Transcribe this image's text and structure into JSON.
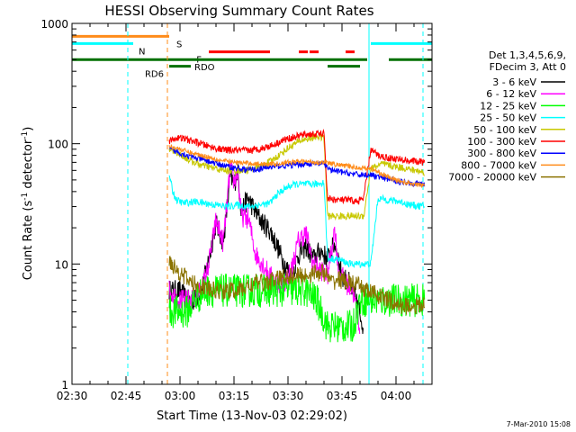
{
  "chart_data": {
    "type": "line",
    "title": "HESSI Observing Summary Count Rates",
    "xlabel": "Start Time (13-Nov-03 02:29:02)",
    "ylabel_main": "Count Rate (s",
    "ylabel_sup1": "-1",
    "ylabel_mid": " detector",
    "ylabel_sup2": "-1",
    "ylabel_end": ")",
    "date_stamp": "7-Mar-2010 15:08",
    "yscale": "log",
    "ylim": [
      1,
      1000
    ],
    "xlim_min": [
      150,
      250
    ],
    "x_ticks": [
      {
        "t": 150,
        "label": "02:30"
      },
      {
        "t": 165,
        "label": "02:45"
      },
      {
        "t": 180,
        "label": "03:00"
      },
      {
        "t": 195,
        "label": "03:15"
      },
      {
        "t": 210,
        "label": "03:30"
      },
      {
        "t": 225,
        "label": "03:45"
      },
      {
        "t": 240,
        "label": "04:00"
      }
    ],
    "y_ticks": [
      {
        "v": 1,
        "label": "1"
      },
      {
        "v": 10,
        "label": "10"
      },
      {
        "v": 100,
        "label": "100"
      },
      {
        "v": 1000,
        "label": "1000"
      }
    ],
    "legend": {
      "position": "right",
      "header": [
        "Det 1,3,4,5,6,9,",
        "FDecim 3, Att 0"
      ],
      "entries": [
        {
          "label": "3 - 6 keV",
          "color": "#000000"
        },
        {
          "label": "6 - 12 keV",
          "color": "#ff00ff"
        },
        {
          "label": "12 - 25 keV",
          "color": "#00ff00"
        },
        {
          "label": "25 - 50 keV",
          "color": "#00ffff"
        },
        {
          "label": "50 - 100 keV",
          "color": "#c8c800"
        },
        {
          "label": "100 - 300 keV",
          "color": "#ff0000"
        },
        {
          "label": "300 - 800 keV",
          "color": "#0000ff"
        },
        {
          "label": "800 - 7000 keV",
          "color": "#ff8c1a"
        },
        {
          "label": "7000 - 20000 keV",
          "color": "#8b7300"
        }
      ]
    },
    "flag_bars": [
      {
        "label": "S",
        "color": "#ff8c1a",
        "y": 780,
        "segments": [
          [
            150,
            177
          ]
        ],
        "label_t": 178,
        "label_side": "right"
      },
      {
        "label": "N",
        "color": "#00ffff",
        "y": 680,
        "segments": [
          [
            150,
            167
          ],
          [
            233,
            250
          ]
        ],
        "label_t": 167.5,
        "label_side": "right"
      },
      {
        "label": "F",
        "color": "#ff0000",
        "y": 580,
        "segments": [
          [
            188,
            205
          ],
          [
            213,
            215.5
          ],
          [
            216,
            218.5
          ],
          [
            226,
            228.5
          ]
        ],
        "label_t": 187,
        "label_side": "left"
      },
      {
        "label": "RDO",
        "color": "#007000",
        "y": 500,
        "segments": [
          [
            150,
            232
          ],
          [
            238,
            250
          ]
        ],
        "label_t": 183,
        "label_side": "right"
      },
      {
        "label": "RD6",
        "color": "#007000",
        "y": 440,
        "segments": [
          [
            177,
            183
          ],
          [
            221,
            230
          ]
        ],
        "label_t": 176.5,
        "label_side": "left"
      }
    ],
    "vlines": [
      {
        "t": 165.5,
        "color": "#00ffff",
        "style": "dashed"
      },
      {
        "t": 176.5,
        "color": "#ff8c1a",
        "style": "dashed"
      },
      {
        "t": 232.5,
        "color": "#00ffff",
        "style": "solid"
      },
      {
        "t": 247.5,
        "color": "#00ffff",
        "style": "dashed"
      }
    ],
    "series": [
      {
        "name": "3 - 6 keV",
        "color": "#000000",
        "noise": 0.18,
        "points": [
          [
            177,
            6
          ],
          [
            180,
            6
          ],
          [
            182,
            5
          ],
          [
            184,
            5
          ],
          [
            186,
            6
          ],
          [
            188,
            11
          ],
          [
            190,
            22
          ],
          [
            192,
            15
          ],
          [
            193,
            28
          ],
          [
            194,
            55
          ],
          [
            195,
            45
          ],
          [
            196,
            60
          ],
          [
            197,
            28
          ],
          [
            199,
            35
          ],
          [
            201,
            27
          ],
          [
            203,
            22
          ],
          [
            205,
            19
          ],
          [
            207,
            14
          ],
          [
            209,
            10
          ],
          [
            211,
            8
          ],
          [
            213,
            12
          ],
          [
            215,
            14
          ],
          [
            217,
            11
          ],
          [
            219,
            13
          ],
          [
            221,
            11
          ],
          [
            223,
            15
          ],
          [
            225,
            8
          ],
          [
            227,
            7
          ],
          [
            229,
            5
          ],
          [
            231,
            3
          ]
        ]
      },
      {
        "name": "6 - 12 keV",
        "color": "#ff00ff",
        "noise": 0.18,
        "points": [
          [
            177,
            6
          ],
          [
            180,
            5
          ],
          [
            183,
            5
          ],
          [
            186,
            6
          ],
          [
            188,
            10
          ],
          [
            190,
            23
          ],
          [
            192,
            15
          ],
          [
            193,
            30
          ],
          [
            194,
            65
          ],
          [
            195,
            48
          ],
          [
            196,
            58
          ],
          [
            197,
            25
          ],
          [
            199,
            24
          ],
          [
            201,
            12
          ],
          [
            203,
            10
          ],
          [
            205,
            8
          ],
          [
            207,
            7
          ],
          [
            209,
            7
          ],
          [
            211,
            9
          ],
          [
            213,
            16
          ],
          [
            215,
            18
          ],
          [
            217,
            10
          ],
          [
            219,
            9
          ],
          [
            221,
            8
          ],
          [
            223,
            20
          ],
          [
            224,
            9
          ],
          [
            226,
            7
          ],
          [
            228,
            6
          ],
          [
            230,
            3
          ]
        ]
      },
      {
        "name": "12 - 25 keV",
        "color": "#00ff00",
        "noise": 0.28,
        "points": [
          [
            177,
            4
          ],
          [
            180,
            4
          ],
          [
            182,
            4
          ],
          [
            184,
            5
          ],
          [
            187,
            6
          ],
          [
            190,
            6
          ],
          [
            195,
            6
          ],
          [
            200,
            6
          ],
          [
            205,
            6
          ],
          [
            210,
            6
          ],
          [
            215,
            6
          ],
          [
            218,
            5
          ],
          [
            221,
            3
          ],
          [
            224,
            3
          ],
          [
            226,
            3
          ],
          [
            228,
            3
          ],
          [
            230,
            5
          ],
          [
            233,
            5
          ],
          [
            236,
            5
          ],
          [
            239,
            5
          ],
          [
            242,
            5
          ],
          [
            245,
            5
          ],
          [
            248,
            5
          ]
        ]
      },
      {
        "name": "25 - 50 keV",
        "color": "#00ffff",
        "noise": 0.06,
        "points": [
          [
            177,
            55
          ],
          [
            178,
            40
          ],
          [
            179,
            34
          ],
          [
            181,
            32
          ],
          [
            184,
            33
          ],
          [
            187,
            32
          ],
          [
            190,
            31
          ],
          [
            193,
            30
          ],
          [
            196,
            31
          ],
          [
            199,
            30
          ],
          [
            202,
            31
          ],
          [
            205,
            32
          ],
          [
            207,
            38
          ],
          [
            210,
            44
          ],
          [
            212,
            46
          ],
          [
            214,
            46
          ],
          [
            216,
            46
          ],
          [
            218,
            46
          ],
          [
            220,
            48
          ],
          [
            221,
            11
          ],
          [
            224,
            11
          ],
          [
            227,
            10
          ],
          [
            229,
            10
          ],
          [
            231,
            10
          ],
          [
            233,
            10
          ],
          [
            235,
            35
          ],
          [
            238,
            34
          ],
          [
            241,
            33
          ],
          [
            244,
            31
          ],
          [
            248,
            30
          ]
        ]
      },
      {
        "name": "50 - 100 keV",
        "color": "#c8c800",
        "noise": 0.06,
        "points": [
          [
            177,
            90
          ],
          [
            179,
            85
          ],
          [
            181,
            78
          ],
          [
            183,
            72
          ],
          [
            186,
            66
          ],
          [
            189,
            63
          ],
          [
            192,
            60
          ],
          [
            195,
            60
          ],
          [
            198,
            60
          ],
          [
            201,
            62
          ],
          [
            204,
            68
          ],
          [
            207,
            78
          ],
          [
            210,
            92
          ],
          [
            212,
            100
          ],
          [
            214,
            108
          ],
          [
            216,
            110
          ],
          [
            218,
            115
          ],
          [
            220,
            112
          ],
          [
            221,
            25
          ],
          [
            224,
            25
          ],
          [
            226,
            25
          ],
          [
            228,
            25
          ],
          [
            230,
            25
          ],
          [
            231,
            25
          ],
          [
            233,
            62
          ],
          [
            236,
            68
          ],
          [
            239,
            65
          ],
          [
            242,
            63
          ],
          [
            245,
            60
          ],
          [
            248,
            58
          ]
        ]
      },
      {
        "name": "100 - 300 keV",
        "color": "#ff0000",
        "noise": 0.06,
        "points": [
          [
            177,
            105
          ],
          [
            179,
            112
          ],
          [
            181,
            110
          ],
          [
            183,
            106
          ],
          [
            185,
            102
          ],
          [
            188,
            95
          ],
          [
            191,
            90
          ],
          [
            194,
            88
          ],
          [
            197,
            88
          ],
          [
            200,
            88
          ],
          [
            203,
            92
          ],
          [
            206,
            98
          ],
          [
            209,
            108
          ],
          [
            212,
            114
          ],
          [
            214,
            118
          ],
          [
            216,
            120
          ],
          [
            218,
            120
          ],
          [
            220,
            121
          ],
          [
            221,
            35
          ],
          [
            224,
            34
          ],
          [
            227,
            34
          ],
          [
            229,
            33
          ],
          [
            231,
            35
          ],
          [
            233,
            90
          ],
          [
            235,
            80
          ],
          [
            238,
            76
          ],
          [
            241,
            74
          ],
          [
            244,
            72
          ],
          [
            248,
            70
          ]
        ]
      },
      {
        "name": "300 - 800 keV",
        "color": "#0000ff",
        "noise": 0.05,
        "points": [
          [
            177,
            90
          ],
          [
            179,
            86
          ],
          [
            181,
            82
          ],
          [
            183,
            78
          ],
          [
            186,
            74
          ],
          [
            189,
            70
          ],
          [
            192,
            66
          ],
          [
            195,
            63
          ],
          [
            198,
            61
          ],
          [
            201,
            61
          ],
          [
            204,
            63
          ],
          [
            207,
            65
          ],
          [
            210,
            66
          ],
          [
            213,
            67
          ],
          [
            216,
            68
          ],
          [
            218,
            68
          ],
          [
            220,
            68
          ],
          [
            222,
            60
          ],
          [
            225,
            58
          ],
          [
            228,
            56
          ],
          [
            230,
            55
          ],
          [
            231,
            55
          ],
          [
            233,
            55
          ],
          [
            236,
            52
          ],
          [
            239,
            50
          ],
          [
            242,
            48
          ],
          [
            245,
            47
          ],
          [
            248,
            46
          ]
        ]
      },
      {
        "name": "800 - 7000 keV",
        "color": "#ff8c1a",
        "noise": 0.04,
        "points": [
          [
            177,
            95
          ],
          [
            179,
            92
          ],
          [
            181,
            88
          ],
          [
            183,
            84
          ],
          [
            186,
            80
          ],
          [
            189,
            76
          ],
          [
            192,
            72
          ],
          [
            195,
            70
          ],
          [
            198,
            69
          ],
          [
            201,
            68
          ],
          [
            204,
            68
          ],
          [
            207,
            68
          ],
          [
            210,
            70
          ],
          [
            213,
            71
          ],
          [
            216,
            71
          ],
          [
            218,
            70
          ],
          [
            220,
            70
          ],
          [
            222,
            68
          ],
          [
            225,
            66
          ],
          [
            228,
            64
          ],
          [
            230,
            63
          ],
          [
            233,
            62
          ],
          [
            236,
            56
          ],
          [
            239,
            51
          ],
          [
            242,
            48
          ],
          [
            245,
            46
          ],
          [
            248,
            45
          ]
        ]
      },
      {
        "name": "7000 - 20000 keV",
        "color": "#8b7300",
        "noise": 0.15,
        "points": [
          [
            177,
            11
          ],
          [
            179,
            9
          ],
          [
            181,
            8
          ],
          [
            183,
            7
          ],
          [
            186,
            6.5
          ],
          [
            189,
            6
          ],
          [
            192,
            6
          ],
          [
            195,
            6
          ],
          [
            198,
            6.3
          ],
          [
            201,
            7
          ],
          [
            204,
            7
          ],
          [
            207,
            7.5
          ],
          [
            210,
            8
          ],
          [
            212,
            8
          ],
          [
            214,
            8
          ],
          [
            216,
            8.2
          ],
          [
            218,
            8.5
          ],
          [
            220,
            8.5
          ],
          [
            222,
            7
          ],
          [
            224,
            7.5
          ],
          [
            226,
            7.2
          ],
          [
            228,
            6.8
          ],
          [
            230,
            6.5
          ],
          [
            232,
            6
          ],
          [
            235,
            5.5
          ],
          [
            238,
            5
          ],
          [
            241,
            4.5
          ],
          [
            244,
            4.5
          ],
          [
            248,
            4.5
          ]
        ]
      }
    ]
  }
}
